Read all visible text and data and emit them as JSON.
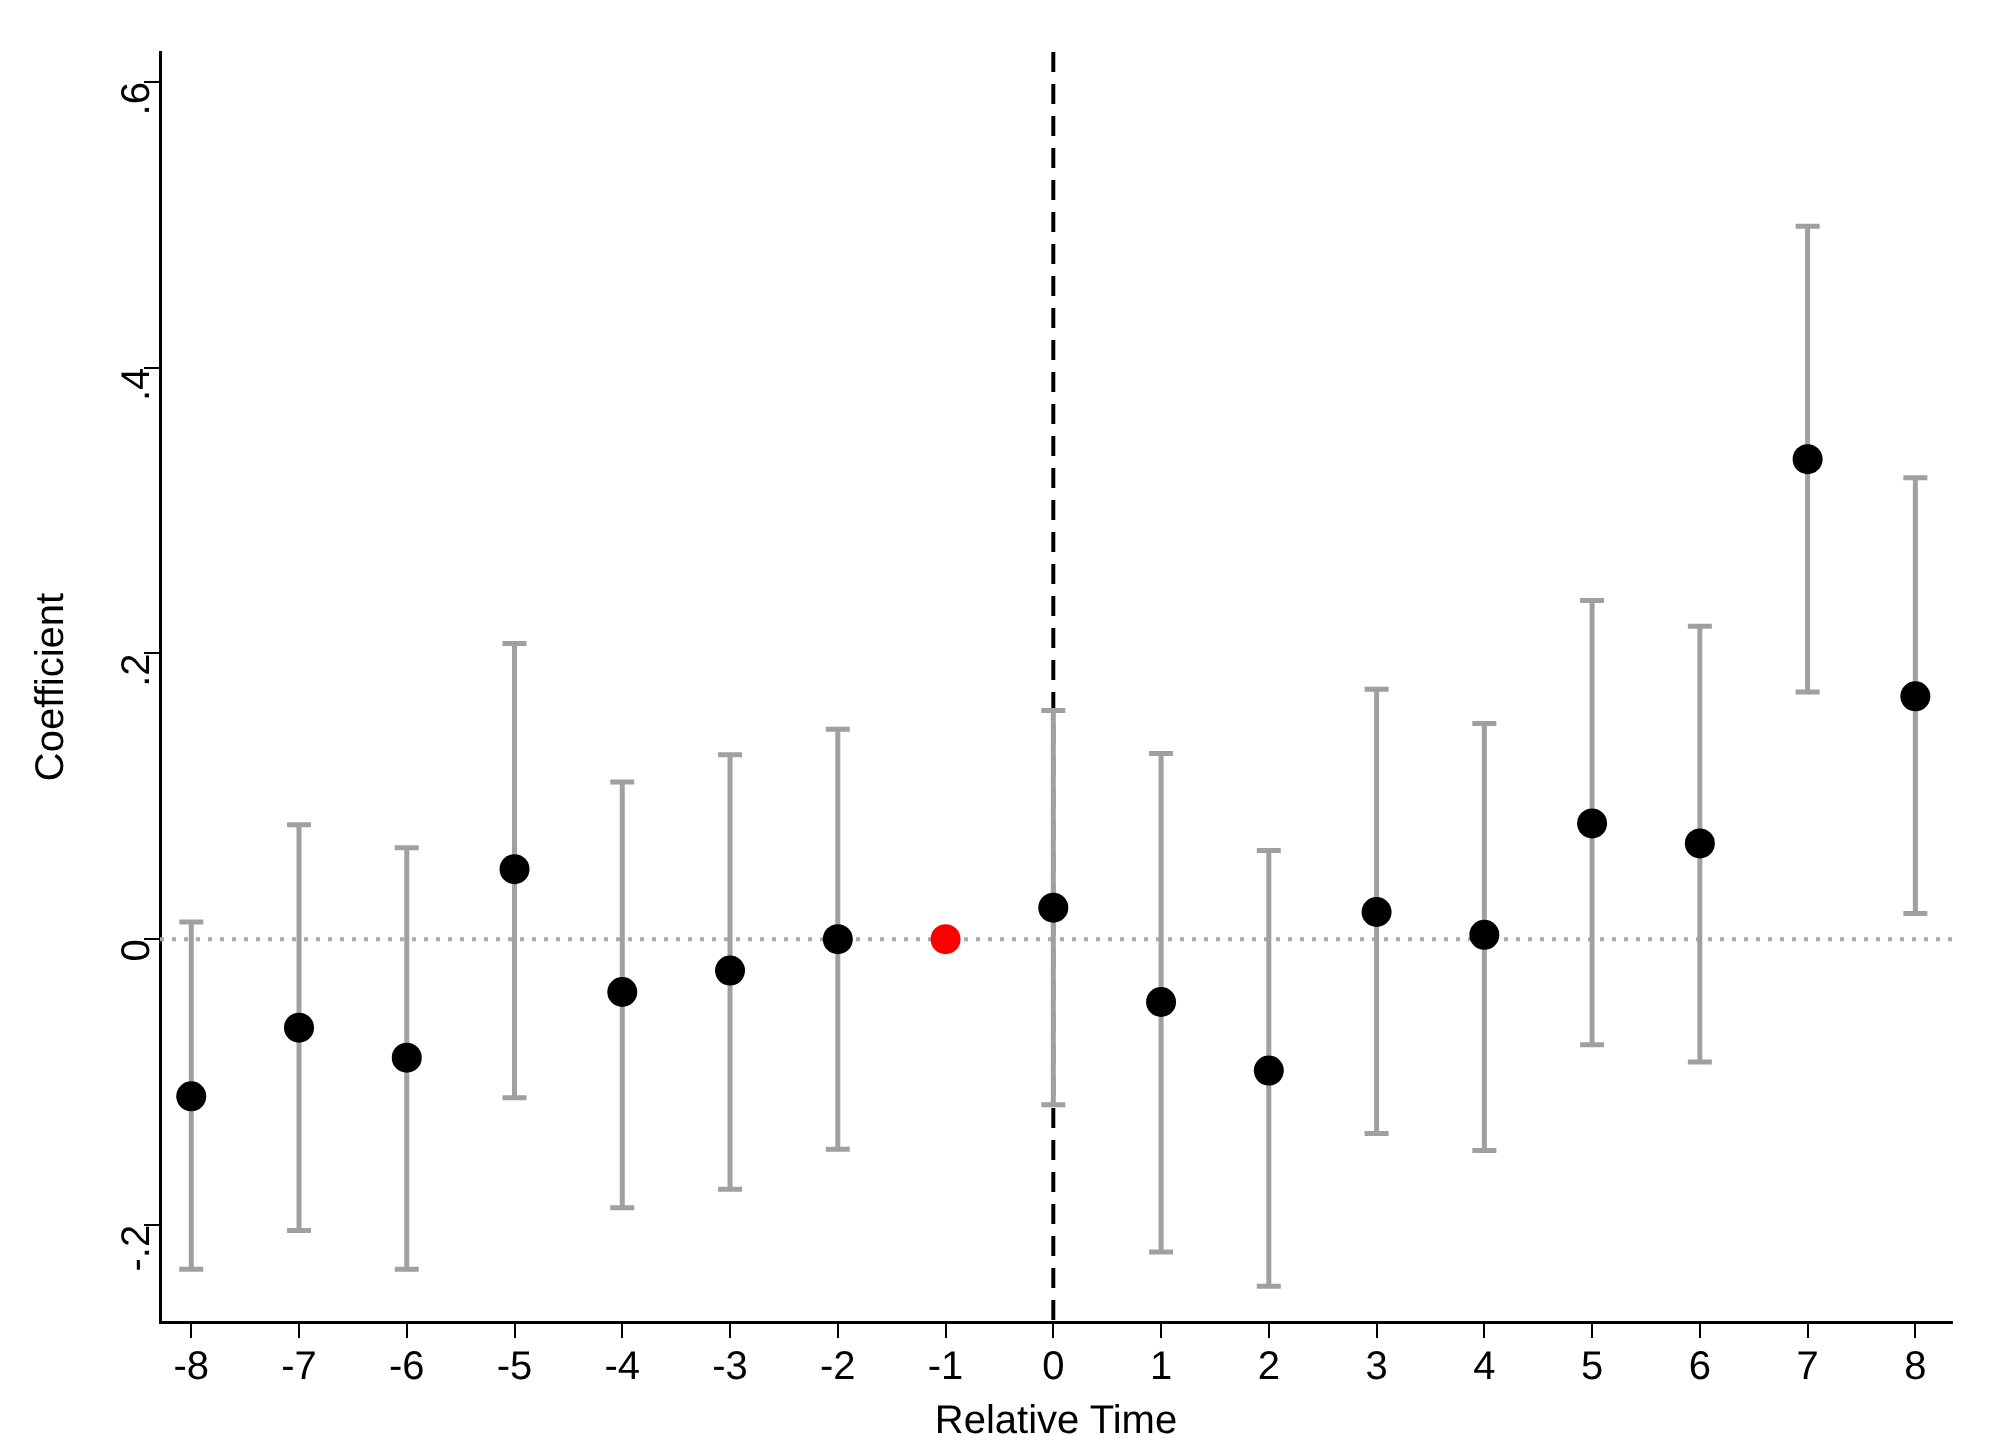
{
  "chart_data": {
    "type": "scatter",
    "xlabel": "Relative Time",
    "ylabel": "Coefficient",
    "x": [
      -8,
      -7,
      -6,
      -5,
      -4,
      -3,
      -2,
      -1,
      0,
      1,
      2,
      3,
      4,
      5,
      6,
      7,
      8
    ],
    "values": [
      -0.11,
      -0.062,
      -0.083,
      0.049,
      -0.037,
      -0.022,
      0.0,
      0.0,
      0.022,
      -0.044,
      -0.092,
      0.019,
      0.003,
      0.081,
      0.067,
      0.336,
      0.17
    ],
    "errors": [
      [
        -0.231,
        0.012
      ],
      [
        -0.204,
        0.08
      ],
      [
        -0.231,
        0.064
      ],
      [
        -0.111,
        0.207
      ],
      [
        -0.188,
        0.11
      ],
      [
        -0.175,
        0.129
      ],
      [
        -0.147,
        0.147
      ],
      null,
      [
        -0.116,
        0.16
      ],
      [
        -0.219,
        0.13
      ],
      [
        -0.243,
        0.062
      ],
      [
        -0.136,
        0.175
      ],
      [
        -0.148,
        0.151
      ],
      [
        -0.074,
        0.237
      ],
      [
        -0.086,
        0.219
      ],
      [
        0.173,
        0.499
      ],
      [
        0.018,
        0.323
      ]
    ],
    "colors": [
      "#000000",
      "#000000",
      "#000000",
      "#000000",
      "#000000",
      "#000000",
      "#000000",
      "#ff0000",
      "#000000",
      "#000000",
      "#000000",
      "#000000",
      "#000000",
      "#000000",
      "#000000",
      "#000000",
      "#000000"
    ],
    "marker": "circle",
    "xlim": [
      -8.29,
      8.34
    ],
    "xticks": [
      -8,
      -7,
      -6,
      -5,
      -4,
      -3,
      -2,
      -1,
      0,
      1,
      2,
      3,
      4,
      5,
      6,
      7,
      8
    ],
    "ylim": [
      -0.268,
      0.621
    ],
    "yticks": [
      {
        "value": -0.2,
        "label": "-.2"
      },
      {
        "value": 0,
        "label": "0"
      },
      {
        "value": 0.2,
        "label": ".2"
      },
      {
        "value": 0.4,
        "label": ".4"
      },
      {
        "value": 0.6,
        "label": ".6"
      }
    ],
    "ref_lines": [
      {
        "axis": "y",
        "value": 0,
        "color": "#aaaaaa",
        "line_style": "dotted"
      },
      {
        "axis": "x",
        "value": 0,
        "color": "#000000",
        "line_style": "dashed"
      }
    ],
    "grid": false,
    "legend": false
  }
}
